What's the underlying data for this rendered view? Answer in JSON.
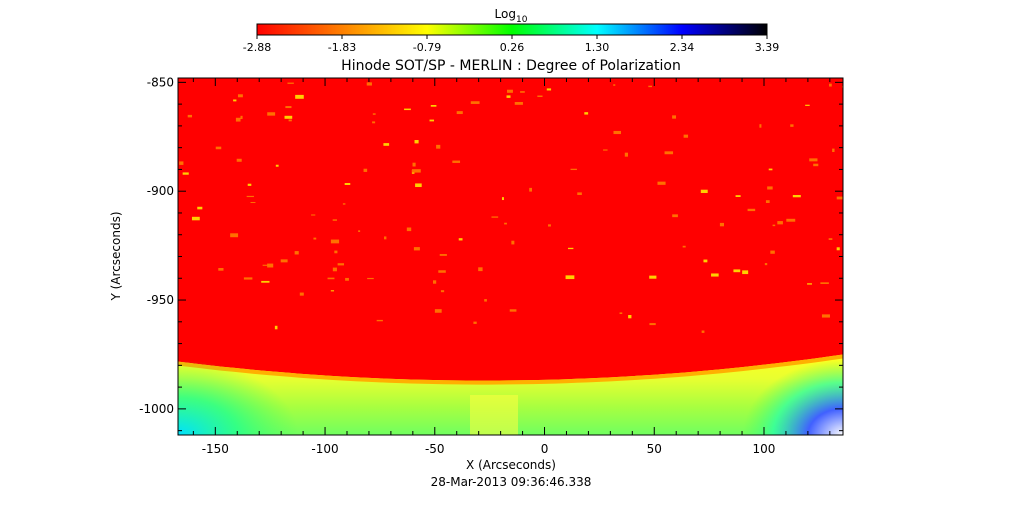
{
  "colorbar": {
    "label": "Log",
    "label_subscript": "10",
    "ticks": [
      "-2.88",
      "-1.83",
      "-0.79",
      "0.26",
      "1.30",
      "2.34",
      "3.39"
    ],
    "range": [
      -2.88,
      3.39
    ],
    "colors": [
      "#ff0000",
      "#ff8000",
      "#ffff00",
      "#00ff00",
      "#00ffff",
      "#0000ff",
      "#000000"
    ]
  },
  "chart_data": {
    "type": "heatmap",
    "title": "Hinode SOT/SP - MERLIN : Degree of Polarization",
    "xlabel": "X (Arcseconds)",
    "ylabel": "Y (Arcseconds)",
    "xlim": [
      -167,
      136
    ],
    "ylim": [
      -1012,
      -848
    ],
    "x_ticks": [
      -150,
      -100,
      -50,
      0,
      50,
      100
    ],
    "y_ticks": [
      -850,
      -900,
      -950,
      -1000
    ],
    "x_tick_labels": [
      "-150",
      "-100",
      "-50",
      "0",
      "50",
      "100"
    ],
    "y_tick_labels": [
      "-850",
      "-900",
      "-950",
      "-1000"
    ],
    "limb_y_at_center": -987,
    "limb_y_at_edges": -975,
    "on_disk_log10_value": -2.88,
    "off_limb_log10_range": [
      -2.0,
      0.3
    ],
    "date": "28-Mar-2013 09:36:46.338"
  }
}
